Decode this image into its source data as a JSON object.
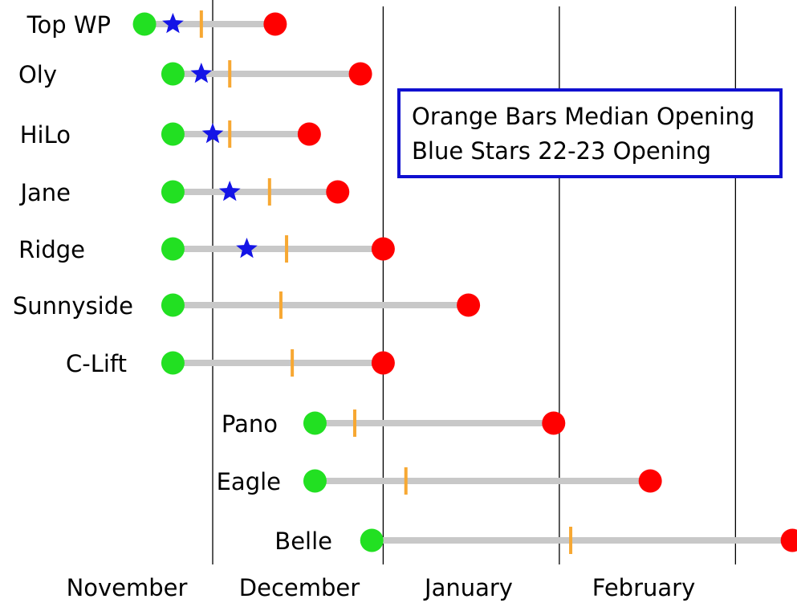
{
  "chart_data": {
    "type": "range-dot",
    "title": "",
    "xlabel": "",
    "ylabel": "",
    "x_unit": "day of season (Nov 1 = 0)",
    "month_labels": [
      "November",
      "December",
      "January",
      "February"
    ],
    "month_starts": [
      0,
      30,
      61,
      92,
      120
    ],
    "grid": "vertical month dividers",
    "legend": {
      "placement": "top-right",
      "entries": [
        "Orange Bars Median Opening",
        "Blue Stars 22-23 Opening"
      ]
    },
    "colors": {
      "earliest": "#22e022",
      "latest": "#ff0000",
      "median": "#f7a833",
      "season_22_23": "#1414e6",
      "range_bar": "#c8c8c8",
      "grid": "#000000",
      "legend_border": "#1010d0"
    },
    "lifts": [
      {
        "name": "Top WP",
        "earliest": -12,
        "latest": 11,
        "median": -2,
        "season_22_23": -7
      },
      {
        "name": "Oly",
        "earliest": -7,
        "latest": 26,
        "median": 3,
        "season_22_23": -2
      },
      {
        "name": "HiLo",
        "earliest": -7,
        "latest": 17,
        "median": 3,
        "season_22_23": 0
      },
      {
        "name": "Jane",
        "earliest": -7,
        "latest": 22,
        "median": 10,
        "season_22_23": 3
      },
      {
        "name": "Ridge",
        "earliest": -7,
        "latest": 30,
        "median": 13,
        "season_22_23": 6
      },
      {
        "name": "Sunnyside",
        "earliest": -7,
        "latest": 45,
        "median": 12,
        "season_22_23": null
      },
      {
        "name": "C-Lift",
        "earliest": -7,
        "latest": 30,
        "median": 14,
        "season_22_23": null
      },
      {
        "name": "Pano",
        "earliest": 18,
        "latest": 60,
        "median": 25,
        "season_22_23": null
      },
      {
        "name": "Eagle",
        "earliest": 18,
        "latest": 77,
        "median": 34,
        "season_22_23": null
      },
      {
        "name": "Belle",
        "earliest": 28,
        "latest": 102,
        "median": 63,
        "season_22_23": null
      }
    ]
  }
}
